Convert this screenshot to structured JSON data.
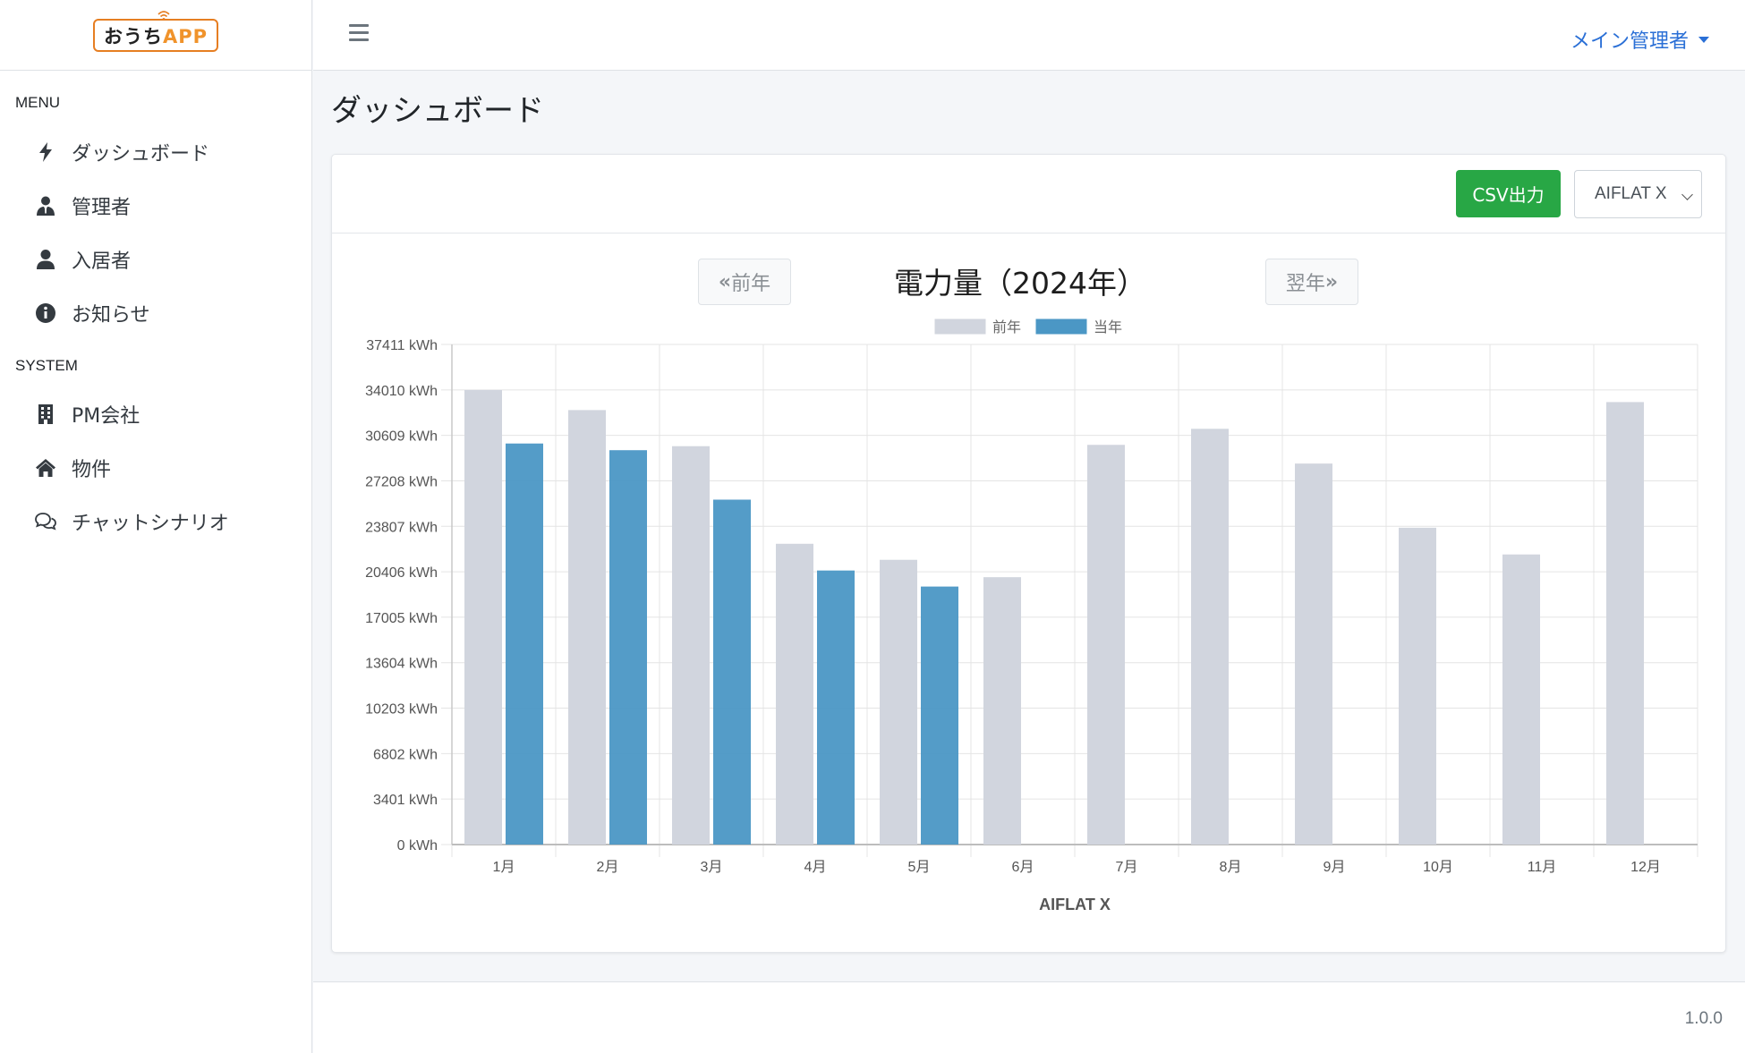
{
  "brand": {
    "logo_main": "おうち",
    "logo_app": "APP"
  },
  "sidebar": {
    "menu_label": "MENU",
    "system_label": "SYSTEM",
    "menu_items": [
      {
        "label": "ダッシュボード",
        "icon": "bolt-icon"
      },
      {
        "label": "管理者",
        "icon": "user-tie-icon"
      },
      {
        "label": "入居者",
        "icon": "user-icon"
      },
      {
        "label": "お知らせ",
        "icon": "info-circle-icon"
      }
    ],
    "system_items": [
      {
        "label": "PM会社",
        "icon": "building-icon"
      },
      {
        "label": "物件",
        "icon": "home-icon"
      },
      {
        "label": "チャットシナリオ",
        "icon": "comments-icon"
      }
    ]
  },
  "header": {
    "user_menu": "メイン管理者"
  },
  "page": {
    "title": "ダッシュボード"
  },
  "card": {
    "csv_button": "CSV出力",
    "property_select": "AIFLAT X",
    "prev_label": "前年",
    "next_label": "翌年",
    "chart_title": "電力量（2024年）"
  },
  "chart_data": {
    "type": "bar",
    "title": "電力量（2024年）",
    "xlabel": "AIFLAT X",
    "ylabel": "",
    "unit": "kWh",
    "ylim": [
      0,
      37411
    ],
    "yticks": [
      0,
      3401,
      6802,
      10203,
      13604,
      17005,
      20406,
      23807,
      27208,
      30609,
      34010,
      37411
    ],
    "categories": [
      "1月",
      "2月",
      "3月",
      "4月",
      "5月",
      "6月",
      "7月",
      "8月",
      "9月",
      "10月",
      "11月",
      "12月"
    ],
    "series": [
      {
        "name": "前年",
        "color": "#d1d5de",
        "values": [
          34000,
          32500,
          29800,
          22500,
          21300,
          20000,
          29900,
          31100,
          28500,
          23700,
          21700,
          33100
        ]
      },
      {
        "name": "当年",
        "color": "#4b97c5",
        "values": [
          30000,
          29500,
          25800,
          20500,
          19300,
          null,
          null,
          null,
          null,
          null,
          null,
          null
        ]
      }
    ],
    "legend": "top",
    "grid": true
  },
  "footer": {
    "version": "1.0.0"
  }
}
